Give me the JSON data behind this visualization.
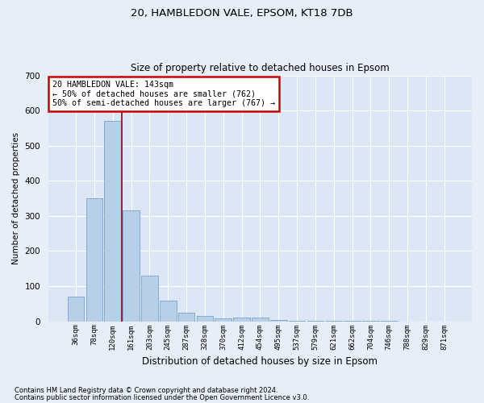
{
  "title": "20, HAMBLEDON VALE, EPSOM, KT18 7DB",
  "subtitle": "Size of property relative to detached houses in Epsom",
  "xlabel": "Distribution of detached houses by size in Epsom",
  "ylabel": "Number of detached properties",
  "bar_labels": [
    "36sqm",
    "78sqm",
    "120sqm",
    "161sqm",
    "203sqm",
    "245sqm",
    "287sqm",
    "328sqm",
    "370sqm",
    "412sqm",
    "454sqm",
    "495sqm",
    "537sqm",
    "579sqm",
    "621sqm",
    "662sqm",
    "704sqm",
    "746sqm",
    "788sqm",
    "829sqm",
    "871sqm"
  ],
  "bar_values": [
    70,
    350,
    570,
    315,
    130,
    58,
    25,
    15,
    8,
    10,
    10,
    3,
    2,
    1,
    1,
    1,
    1,
    1,
    0,
    0,
    0
  ],
  "bar_color": "#b8cfe8",
  "bar_edgecolor": "#6699cc",
  "bg_color": "#dce6f5",
  "fig_bg_color": "#e8eef8",
  "grid_color": "#ffffff",
  "ylim": [
    0,
    700
  ],
  "yticks": [
    0,
    100,
    200,
    300,
    400,
    500,
    600,
    700
  ],
  "red_line_x": 2.5,
  "annotation_text": "20 HAMBLEDON VALE: 143sqm\n← 50% of detached houses are smaller (762)\n50% of semi-detached houses are larger (767) →",
  "annotation_box_color": "#ffffff",
  "annotation_box_edgecolor": "#cc0000",
  "footnote1": "Contains HM Land Registry data © Crown copyright and database right 2024.",
  "footnote2": "Contains public sector information licensed under the Open Government Licence v3.0."
}
